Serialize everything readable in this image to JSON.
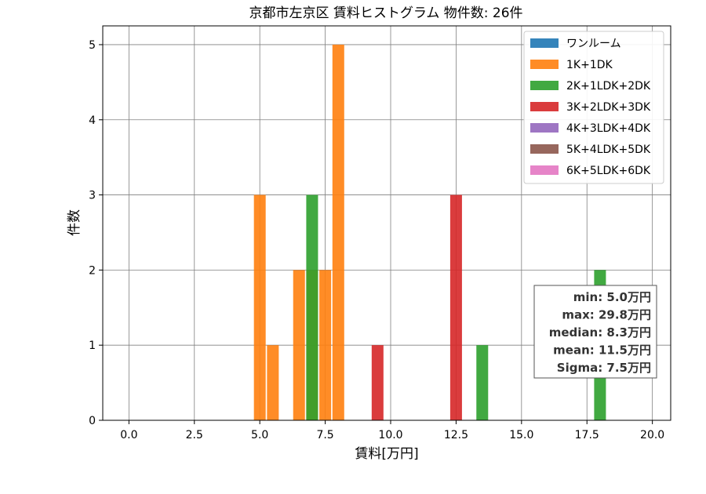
{
  "chart_data": {
    "type": "bar",
    "title": "京都市左京区 賃料ヒストグラム  物件数: 26件",
    "xlabel": "賃料[万円]",
    "ylabel": "件数",
    "xlim": [
      -1.0,
      20.7
    ],
    "ylim": [
      0,
      5.25
    ],
    "xticks": [
      0.0,
      2.5,
      5.0,
      7.5,
      10.0,
      12.5,
      15.0,
      17.5,
      20.0
    ],
    "xtick_labels": [
      "0.0",
      "2.5",
      "5.0",
      "7.5",
      "10.0",
      "12.5",
      "15.0",
      "17.5",
      "20.0"
    ],
    "yticks": [
      0,
      1,
      2,
      3,
      4,
      5
    ],
    "ytick_labels": [
      "0",
      "1",
      "2",
      "3",
      "4",
      "5"
    ],
    "grid": true,
    "legend_position": "top-right",
    "bin_width": 0.5,
    "series": [
      {
        "name": "ワンルーム",
        "color": "#1f77b4",
        "bars": []
      },
      {
        "name": "1K+1DK",
        "color": "#ff7f0e",
        "bars": [
          {
            "x": 5.0,
            "value": 3
          },
          {
            "x": 5.5,
            "value": 1
          },
          {
            "x": 6.5,
            "value": 2
          },
          {
            "x": 7.0,
            "value": 2
          },
          {
            "x": 7.5,
            "value": 2
          },
          {
            "x": 8.0,
            "value": 5
          }
        ]
      },
      {
        "name": "2K+1LDK+2DK",
        "color": "#2ca02c",
        "bars": [
          {
            "x": 7.0,
            "value": 3
          },
          {
            "x": 13.5,
            "value": 1
          },
          {
            "x": 18.0,
            "value": 2
          }
        ]
      },
      {
        "name": "3K+2LDK+3DK",
        "color": "#d62728",
        "bars": [
          {
            "x": 9.5,
            "value": 1
          },
          {
            "x": 12.5,
            "value": 3
          }
        ]
      },
      {
        "name": "4K+3LDK+4DK",
        "color": "#9467bd",
        "bars": []
      },
      {
        "name": "5K+4LDK+5DK",
        "color": "#8c564b",
        "bars": []
      },
      {
        "name": "6K+5LDK+6DK",
        "color": "#e377c2",
        "bars": []
      }
    ],
    "annotation": [
      "min: 5.0万円",
      "max: 29.8万円",
      "median: 8.3万円",
      "mean: 11.5万円",
      "Sigma: 7.5万円"
    ]
  }
}
